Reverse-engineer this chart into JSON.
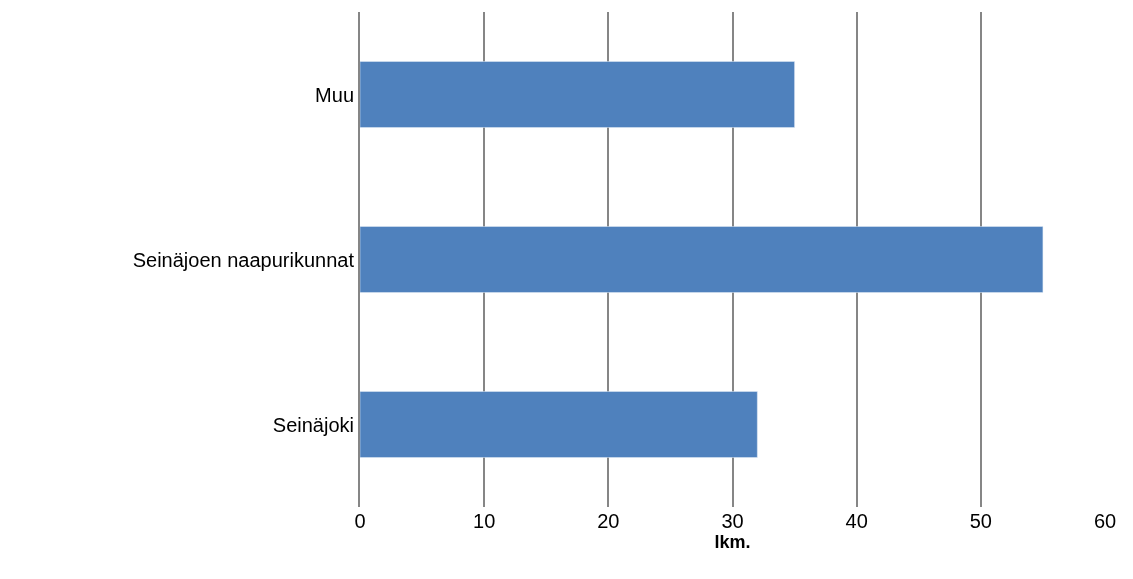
{
  "chart_data": {
    "type": "bar",
    "orientation": "horizontal",
    "xlabel": "lkm.",
    "categories": [
      "Muu",
      "Seinäjoen naapurikunnat",
      "Seinäjoki"
    ],
    "values": [
      35,
      55,
      32
    ],
    "color": "#4f81bd",
    "xlim": [
      0,
      60
    ],
    "xticks": [
      0,
      10,
      20,
      30,
      40,
      50,
      60
    ],
    "grid": "x"
  }
}
